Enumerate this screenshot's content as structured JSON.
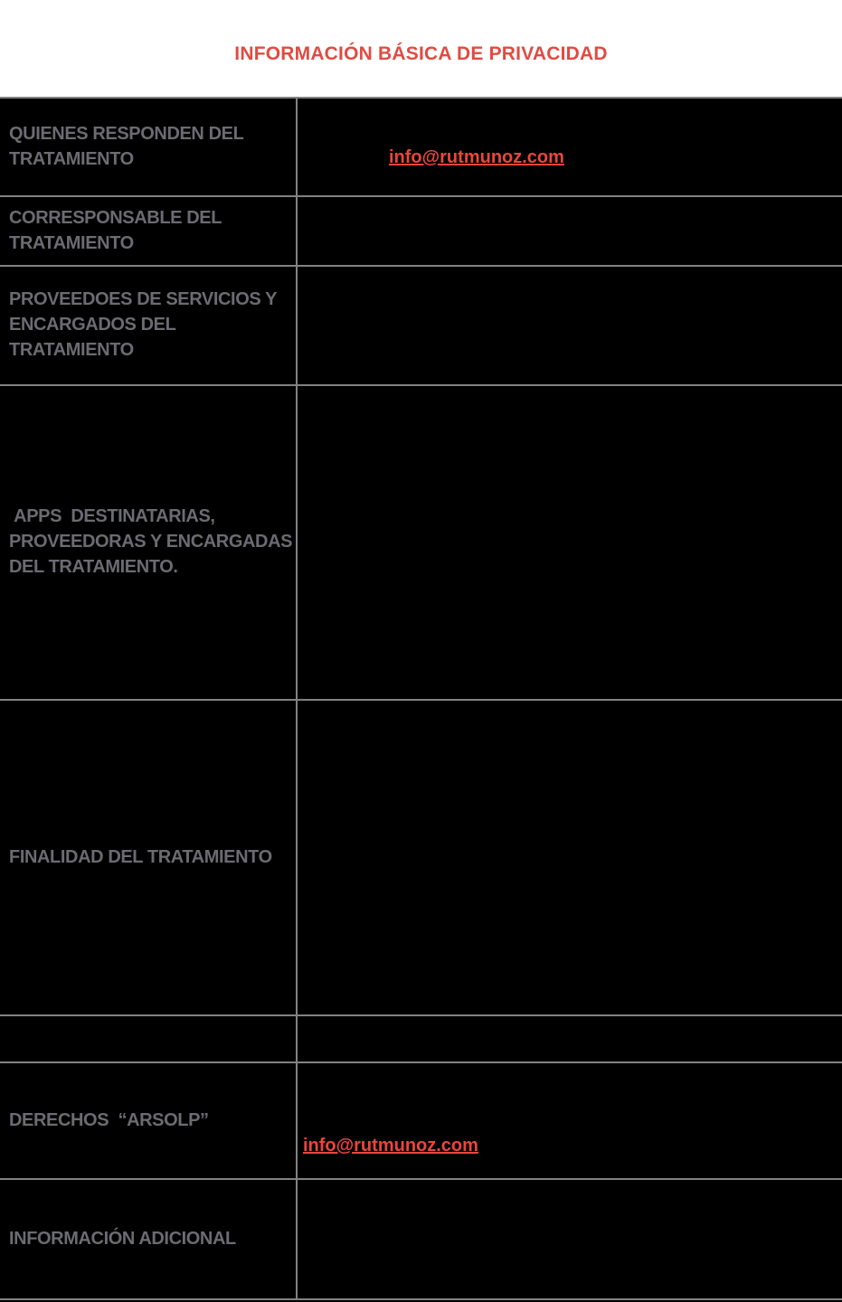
{
  "header": {
    "title": "INFORMACIÓN BÁSICA DE PRIVACIDAD"
  },
  "colors": {
    "title_red": "#e04b42",
    "link_red": "#eb463c",
    "label_gray": "#6b6b72",
    "grid_gray": "#828282",
    "table_background": "#000000",
    "page_background": "#ffffff"
  },
  "table": {
    "rows": [
      {
        "label": "QUIENES RESPONDEN DEL\nTRATAMIENTO",
        "link": "info@rutmunoz.com"
      },
      {
        "label": "CORRESPONSABLE DEL\nTRATAMIENTO",
        "link": ""
      },
      {
        "label": "PROVEEDOES DE SERVICIOS Y\nENCARGADOS DEL\nTRATAMIENTO",
        "link": ""
      },
      {
        "label": " APPS  DESTINATARIAS,\nPROVEEDORAS Y ENCARGADAS\nDEL TRATAMIENTO.",
        "link": ""
      },
      {
        "label": "FINALIDAD DEL TRATAMIENTO",
        "link": ""
      },
      {
        "label": "",
        "link": ""
      },
      {
        "label": "DERECHOS  “ARSOLP”",
        "link": "info@rutmunoz.com"
      },
      {
        "label": "INFORMACIÓN ADICIONAL",
        "link": ""
      }
    ]
  }
}
